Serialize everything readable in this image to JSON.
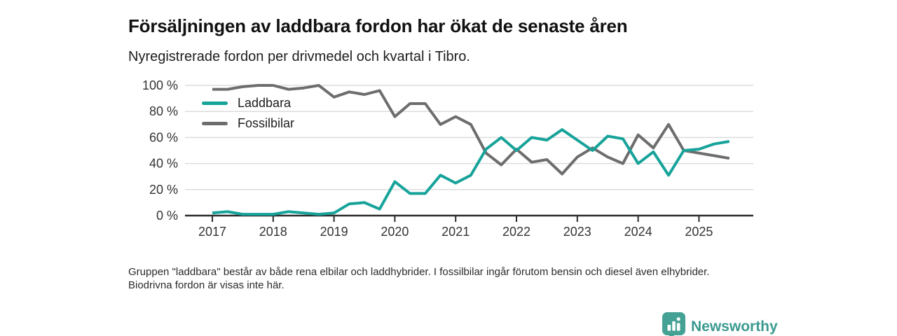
{
  "page": {
    "title": "Försäljningen av laddbara fordon har ökat de senaste åren",
    "subtitle": "Nyregistrerade fordon per drivmedel och kvartal i Tibro.",
    "footnote": "Gruppen \"laddbara\" består av både rena elbilar och laddhybrider. I fossilbilar ingår förutom bensin och diesel även elhybrider. Biodrivna fordon är visas inte här.",
    "branding": {
      "wordmark": "Newsworthy",
      "badge_icon": "bar-chart-pin-icon",
      "badge_color": "#44a194",
      "wordmark_color": "#3b9a90"
    }
  },
  "chart_data": {
    "type": "line",
    "title": "Försäljningen av laddbara fordon har ökat de senaste åren",
    "subtitle": "Nyregistrerade fordon per drivmedel och kvartal i Tibro.",
    "x_unit": "quarter",
    "quarters": [
      "2017Q1",
      "2017Q2",
      "2017Q3",
      "2017Q4",
      "2018Q1",
      "2018Q2",
      "2018Q3",
      "2018Q4",
      "2019Q1",
      "2019Q2",
      "2019Q3",
      "2019Q4",
      "2020Q1",
      "2020Q2",
      "2020Q3",
      "2020Q4",
      "2021Q1",
      "2021Q2",
      "2021Q3",
      "2021Q4",
      "2022Q1",
      "2022Q2",
      "2022Q3",
      "2022Q4",
      "2023Q1",
      "2023Q2",
      "2023Q3",
      "2023Q4",
      "2024Q1",
      "2024Q2",
      "2024Q3",
      "2024Q4",
      "2025Q1",
      "2025Q2",
      "2025Q3"
    ],
    "xtick_labels": [
      "2017",
      "2018",
      "2019",
      "2020",
      "2021",
      "2022",
      "2023",
      "2024",
      "2025"
    ],
    "yticks": [
      0,
      20,
      40,
      60,
      80,
      100
    ],
    "ytick_labels": [
      "0 %",
      "20 %",
      "40 %",
      "60 %",
      "80 %",
      "100 %"
    ],
    "ylim": [
      0,
      100
    ],
    "grid": true,
    "legend_position": "top-left",
    "series": [
      {
        "name": "Laddbara",
        "color": "#17a39a",
        "values": [
          2,
          3,
          1,
          1,
          1,
          3,
          2,
          1,
          2,
          9,
          10,
          5,
          26,
          17,
          17,
          31,
          25,
          31,
          51,
          60,
          50,
          60,
          58,
          66,
          58,
          50,
          61,
          59,
          40,
          49,
          31,
          50,
          51,
          55,
          57
        ]
      },
      {
        "name": "Fossilbilar",
        "color": "#6d6d6d",
        "values": [
          97,
          97,
          99,
          100,
          100,
          97,
          98,
          100,
          91,
          95,
          93,
          96,
          76,
          86,
          86,
          70,
          76,
          70,
          48,
          39,
          51,
          41,
          43,
          32,
          45,
          52,
          45,
          40,
          62,
          52,
          70,
          50,
          48,
          46,
          44
        ]
      }
    ]
  }
}
